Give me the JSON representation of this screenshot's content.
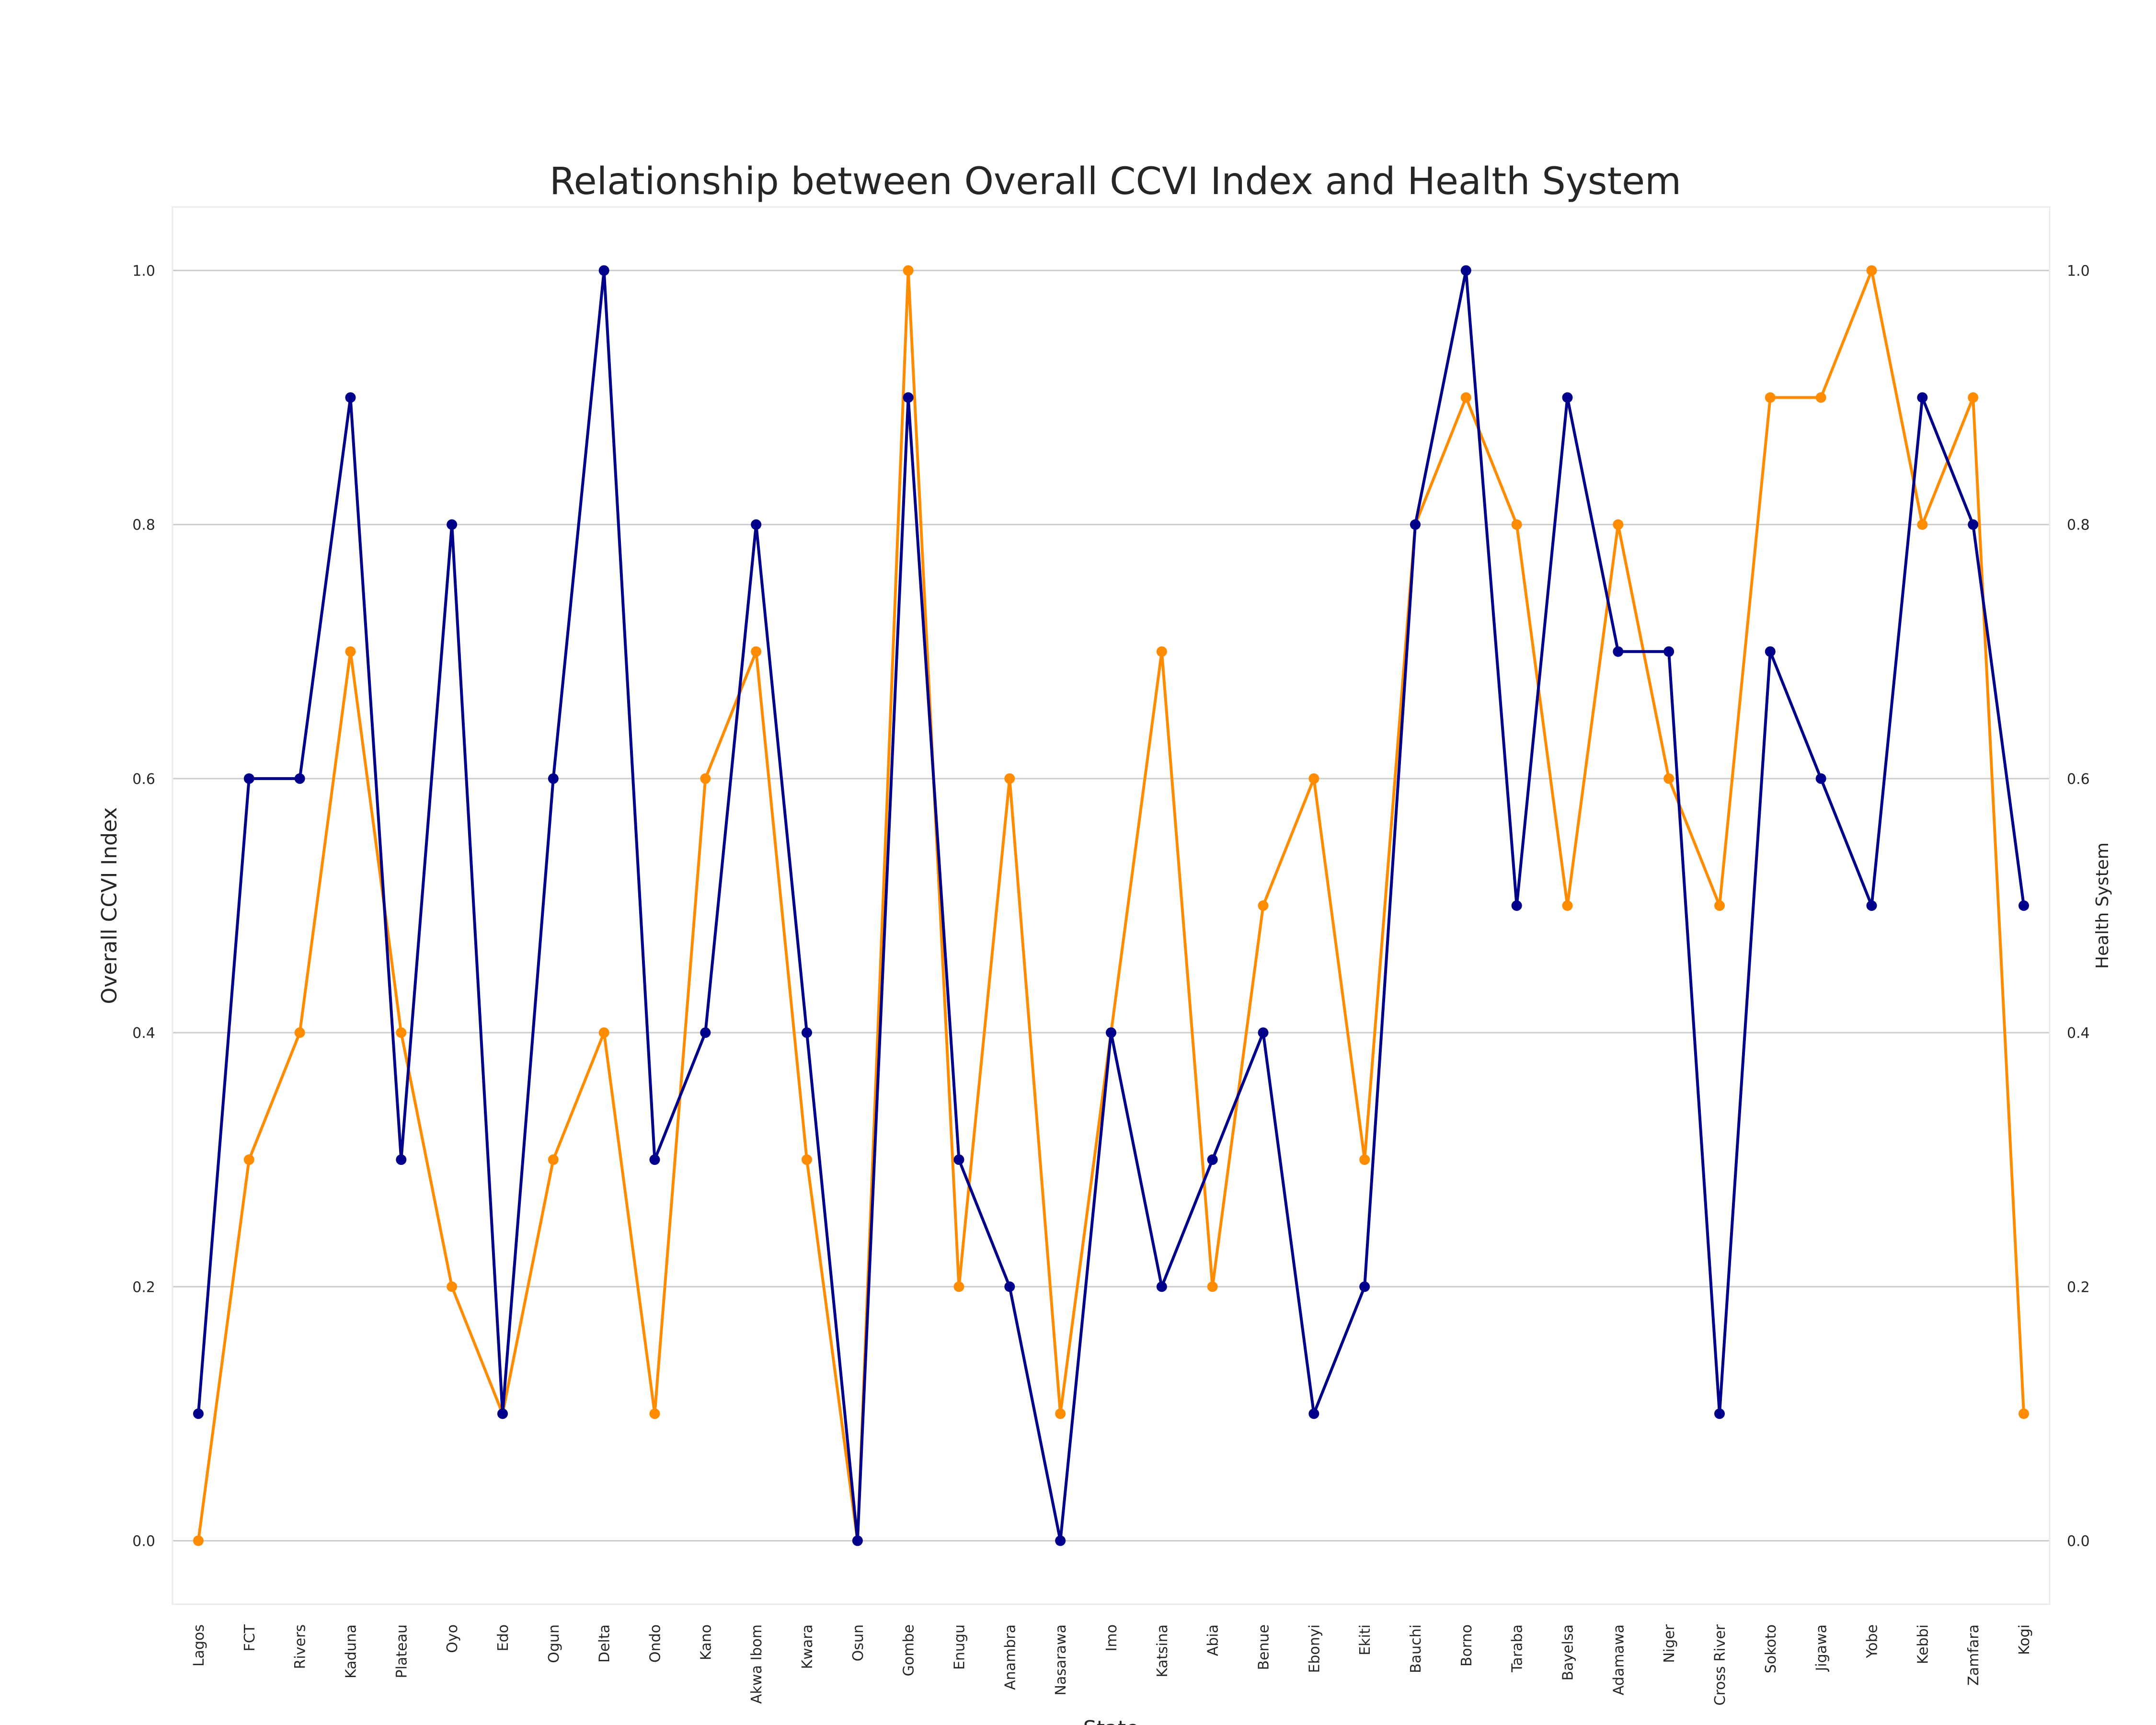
{
  "chart_data": {
    "type": "line",
    "title": "Relationship between Overall CCVI Index and Health System",
    "xlabel": "State",
    "ylabel": "Overall CCVI Index",
    "ylabel_right": "Health System",
    "ylim": [
      -0.05,
      1.05
    ],
    "yticks": [
      "0.0",
      "0.2",
      "0.4",
      "0.6",
      "0.8",
      "1.0"
    ],
    "grid": "horizontal",
    "categories": [
      "Lagos",
      "FCT",
      "Rivers",
      "Kaduna",
      "Plateau",
      "Oyo",
      "Edo",
      "Ogun",
      "Delta",
      "Ondo",
      "Kano",
      "Akwa Ibom",
      "Kwara",
      "Osun",
      "Gombe",
      "Enugu",
      "Anambra",
      "Nasarawa",
      "Imo",
      "Katsina",
      "Abia",
      "Benue",
      "Ebonyi",
      "Ekiti",
      "Bauchi",
      "Borno",
      "Taraba",
      "Bayelsa",
      "Adamawa",
      "Niger",
      "Cross River",
      "Sokoto",
      "Jigawa",
      "Yobe",
      "Kebbi",
      "Zamfara",
      "Kogi"
    ],
    "series": [
      {
        "axis": "left",
        "color": "#ff8c00",
        "values": [
          0.0,
          0.3,
          0.4,
          0.7,
          0.4,
          0.2,
          0.1,
          0.3,
          0.4,
          0.1,
          0.6,
          0.7,
          0.3,
          0.0,
          1.0,
          0.2,
          0.6,
          0.1,
          0.4,
          0.7,
          0.2,
          0.5,
          0.6,
          0.3,
          0.8,
          0.9,
          0.8,
          0.5,
          0.8,
          0.6,
          0.5,
          0.9,
          0.9,
          1.0,
          0.8,
          0.9,
          0.1
        ]
      },
      {
        "axis": "right",
        "color": "#00008b",
        "values": [
          0.1,
          0.6,
          0.6,
          0.9,
          0.3,
          0.8,
          0.1,
          0.6,
          1.0,
          0.3,
          0.4,
          0.8,
          0.4,
          0.0,
          0.9,
          0.3,
          0.2,
          0.0,
          0.4,
          0.2,
          0.3,
          0.4,
          0.1,
          0.2,
          0.8,
          1.0,
          0.5,
          0.9,
          0.7,
          0.7,
          0.1,
          0.7,
          0.6,
          0.5,
          0.9,
          0.8,
          0.5
        ]
      }
    ]
  }
}
